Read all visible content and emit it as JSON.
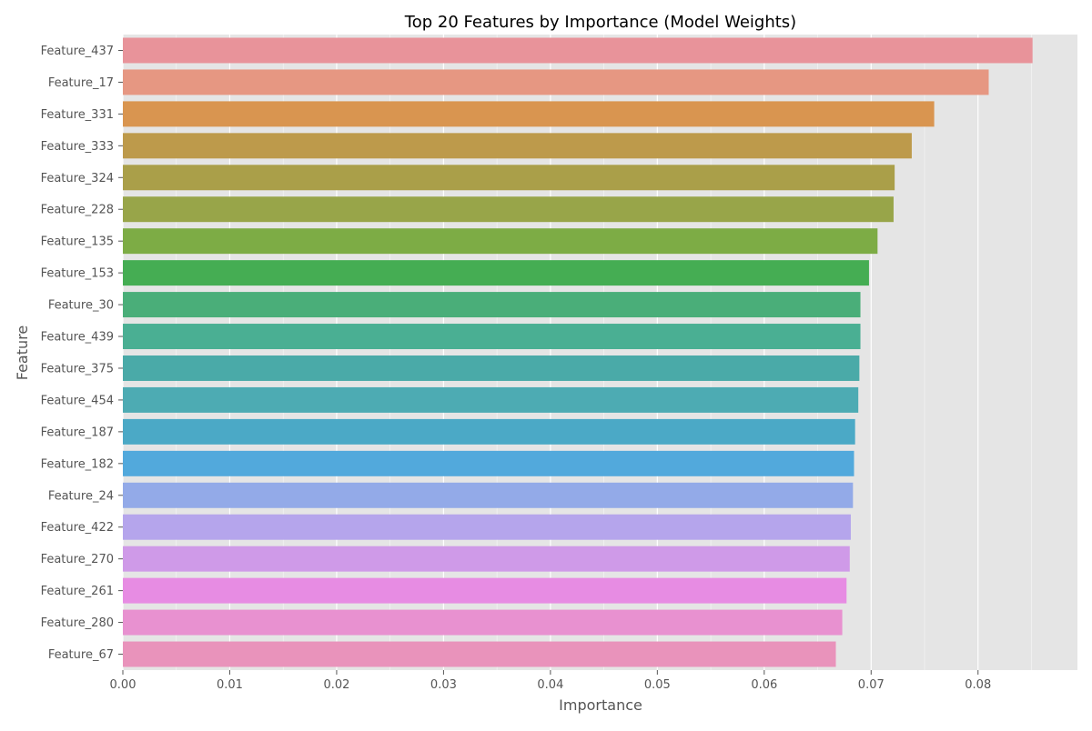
{
  "chart_data": {
    "type": "bar",
    "orientation": "horizontal",
    "title": "Top 20 Features by Importance (Model Weights)",
    "xlabel": "Importance",
    "ylabel": "Feature",
    "xlim": [
      0,
      0.0893
    ],
    "xticks": [
      0.0,
      0.01,
      0.02,
      0.03,
      0.04,
      0.05,
      0.06,
      0.07,
      0.08
    ],
    "xtick_labels": [
      "0.00",
      "0.01",
      "0.02",
      "0.03",
      "0.04",
      "0.05",
      "0.06",
      "0.07",
      "0.08"
    ],
    "grid": true,
    "legend": "none",
    "style": "ggplot",
    "categories": [
      "Feature_437",
      "Feature_17",
      "Feature_331",
      "Feature_333",
      "Feature_324",
      "Feature_228",
      "Feature_135",
      "Feature_153",
      "Feature_30",
      "Feature_439",
      "Feature_375",
      "Feature_454",
      "Feature_187",
      "Feature_182",
      "Feature_24",
      "Feature_422",
      "Feature_270",
      "Feature_261",
      "Feature_280",
      "Feature_67"
    ],
    "values": [
      0.0851,
      0.081,
      0.0759,
      0.0738,
      0.0722,
      0.0721,
      0.0706,
      0.0698,
      0.069,
      0.069,
      0.0689,
      0.0688,
      0.0685,
      0.0684,
      0.0683,
      0.0681,
      0.068,
      0.0677,
      0.0673,
      0.0667
    ],
    "colors": [
      "#e8939a",
      "#e69782",
      "#d99550",
      "#bd9a4b",
      "#aa9f49",
      "#98a549",
      "#7dac45",
      "#45ad53",
      "#4aae79",
      "#4aaf93",
      "#4aaaa8",
      "#4dabb3",
      "#4ba9c6",
      "#52a9dc",
      "#93aae8",
      "#b5a5ec",
      "#cf9ae8",
      "#e78ce3",
      "#e891d0",
      "#e993bb"
    ]
  }
}
